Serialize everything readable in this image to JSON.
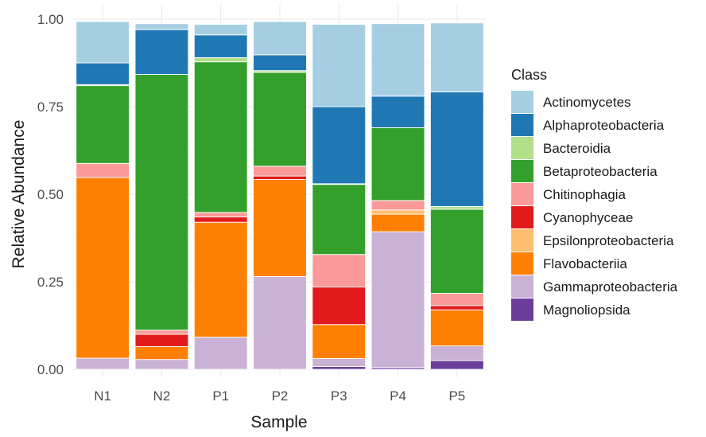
{
  "chart_data": {
    "type": "bar",
    "stacked": true,
    "title": "",
    "xlabel": "Sample",
    "ylabel": "Relative Abundance",
    "ylim": [
      0,
      1
    ],
    "yticks": [
      "0.00",
      "0.25",
      "0.50",
      "0.75",
      "1.00"
    ],
    "grid": true,
    "legend_position": "right",
    "legend_title": "Class",
    "categories": [
      "N1",
      "N2",
      "P1",
      "P2",
      "P3",
      "P4",
      "P5"
    ],
    "series": [
      {
        "name": "Magnoliopsida",
        "color": "#6a3d9a",
        "values": [
          0.0,
          0.0,
          0.0,
          0.0,
          0.008,
          0.005,
          0.025
        ]
      },
      {
        "name": "Gammaproteobacteria",
        "color": "#cab2d6",
        "values": [
          0.032,
          0.028,
          0.092,
          0.265,
          0.023,
          0.388,
          0.042
        ]
      },
      {
        "name": "Flavobacteriia",
        "color": "#ff7f00",
        "values": [
          0.516,
          0.037,
          0.328,
          0.277,
          0.097,
          0.05,
          0.103
        ]
      },
      {
        "name": "Epsilonproteobacteria",
        "color": "#fdbf6f",
        "values": [
          0.0,
          0.0,
          0.0,
          0.0,
          0.0,
          0.012,
          0.0
        ]
      },
      {
        "name": "Cyanophyceae",
        "color": "#e31a1c",
        "values": [
          0.0,
          0.035,
          0.015,
          0.01,
          0.107,
          0.0,
          0.012
        ]
      },
      {
        "name": "Chitinophagia",
        "color": "#fb9a99",
        "values": [
          0.04,
          0.012,
          0.013,
          0.028,
          0.093,
          0.027,
          0.035
        ]
      },
      {
        "name": "Betaproteobacteria",
        "color": "#33a02c",
        "values": [
          0.222,
          0.73,
          0.43,
          0.268,
          0.2,
          0.208,
          0.24
        ]
      },
      {
        "name": "Bacteroidia",
        "color": "#b2df8a",
        "values": [
          0.003,
          0.0,
          0.012,
          0.005,
          0.002,
          0.0,
          0.008
        ]
      },
      {
        "name": "Alphaproteobacteria",
        "color": "#1f78b4",
        "values": [
          0.062,
          0.128,
          0.065,
          0.045,
          0.22,
          0.09,
          0.327
        ]
      },
      {
        "name": "Actinomycetes",
        "color": "#a6cee3",
        "values": [
          0.118,
          0.017,
          0.03,
          0.095,
          0.235,
          0.207,
          0.197
        ]
      }
    ],
    "legend_order": [
      "Actinomycetes",
      "Alphaproteobacteria",
      "Bacteroidia",
      "Betaproteobacteria",
      "Chitinophagia",
      "Cyanophyceae",
      "Epsilonproteobacteria",
      "Flavobacteriia",
      "Gammaproteobacteria",
      "Magnoliopsida"
    ]
  }
}
